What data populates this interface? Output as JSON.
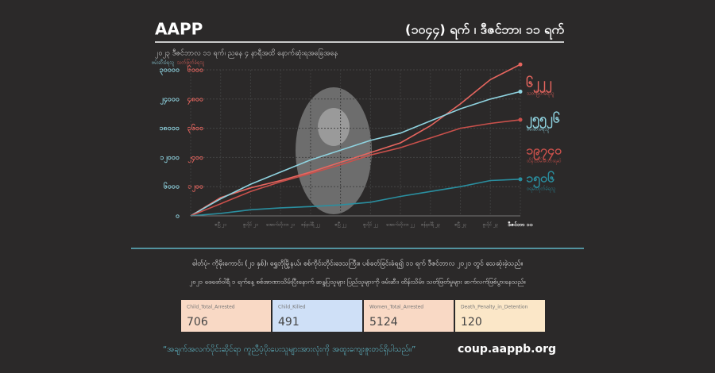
{
  "header": {
    "title": "AAPP",
    "date": "(၁၀၄၄) ရက် ၊ ဒီဇင်ဘာ၊ ၁၁ ရက်",
    "subtitle": "၂၀၂၃ ဒီဇင်ဘာလ ၁၁ ရက်၊ ညနေ ၄ နာရီအထိ နောက်ဆုံးရအခြေအနေ"
  },
  "chart_data": {
    "type": "line",
    "y_label": "ဖမ်းဆီးခံရသူ",
    "y2_label": "သတ်ဖြတ်ခံရသူ",
    "categories": [
      null,
      "ဧပြီ ၂၁",
      "ဇူလိုင် ၂၁",
      "အောက်တိုဘာ ၂၁",
      "ဇန်နဝါရီ ၂၂",
      "ဧပြီ ၂၂",
      "ဇူလိုင် ၂၂",
      "အောက်တိုဘာ ၂၂",
      "ဇန်နဝါရီ ၂၃",
      "ဧပြီ ၂၃",
      "ဇူလိုင် ၂၃",
      "ဒီဇင်ဘာ ၁၁"
    ],
    "ylim": [
      0,
      30000
    ],
    "yticks": [
      {
        "value": 0,
        "label": "၀"
      },
      {
        "value": 6000,
        "label": "၆၀၀၀"
      },
      {
        "value": 12000,
        "label": "၁၂၀၀၀"
      },
      {
        "value": 18000,
        "label": "၁၈၀၀၀"
      },
      {
        "value": 24000,
        "label": "၂၄၀၀၀"
      },
      {
        "value": 30000,
        "label": "၃၀၀၀၀"
      }
    ],
    "y2lim": [
      0,
      6000
    ],
    "y2ticks": [
      {
        "value": 1200,
        "label": "၁၂၀၀"
      },
      {
        "value": 2400,
        "label": "၂၄၀၀"
      },
      {
        "value": 3600,
        "label": "၃၆၀၀"
      },
      {
        "value": 4800,
        "label": "၄၈၀၀"
      },
      {
        "value": 6000,
        "label": "၆၀၀၀"
      }
    ],
    "grid": true,
    "series": [
      {
        "name": "သတ်ဖြတ်ခံရသူ",
        "color": "#e8665f",
        "axis": "y2",
        "values": [
          0,
          750,
          1150,
          1450,
          1800,
          2200,
          2600,
          3000,
          3700,
          4600,
          5600,
          6222
        ],
        "value_labels": [
          null,
          null,
          null,
          null,
          null,
          null,
          null,
          null,
          null,
          null,
          null,
          "၆၂၂၂"
        ]
      },
      {
        "name": "ဖမ်းဆီးခံရသူ",
        "color": "#8fd3e0",
        "values": [
          0,
          3500,
          6500,
          9000,
          11500,
          13500,
          15500,
          17000,
          19500,
          22000,
          24000,
          25526
        ],
        "value_labels": [
          null,
          null,
          null,
          null,
          null,
          null,
          null,
          null,
          null,
          null,
          null,
          "၂၅၅၂၆"
        ]
      },
      {
        "name": "ထိန်းသိမ်းခံထားရဆဲ",
        "color": "#c9504b",
        "values": [
          0,
          2500,
          5000,
          7000,
          8700,
          10500,
          12500,
          14000,
          16000,
          18000,
          19000,
          19740
        ],
        "value_labels": [
          null,
          null,
          null,
          null,
          null,
          null,
          null,
          null,
          null,
          null,
          null,
          "၁၉၇၄၀"
        ]
      },
      {
        "name": "ဝရမ်းထုတ်ခံရသူ",
        "color": "#2a8fa0",
        "axis": "y2",
        "values": [
          0,
          100,
          250,
          330,
          380,
          450,
          560,
          800,
          1000,
          1200,
          1450,
          1506
        ],
        "value_labels": [
          null,
          null,
          null,
          null,
          null,
          null,
          null,
          null,
          null,
          null,
          null,
          "၁၅၀၆"
        ]
      }
    ]
  },
  "notes": [
    "ဓါတ်ပုံ- ကိုမိုးကောင်း (၂၁ နှစ်)၊ ရွှေဘိုမြို့နယ်၊ စစ်ကိုင်းတိုင်းဒေသကြီး။ ပစ်ခတ်ခြင်းခံရ၍ ၁၁ ရက် ဒီဇင်ဘာလ ၂၀၂၁ တွင် သေဆုံးခဲ့သည်။",
    "၂၀၂၁ ဖေဖော်ဝါရီ ၁ ရက်နေ့ စစ်အာဏာသိမ်းပြီးနောက် ဆန္ဒပြသူများ ပြည်သူများကို ဖမ်းဆီး၊ ထိန်းသိမ်း၊ သတ်ဖြတ်မှုများ ဆက်လက်ဖြစ်ပွားနေသည်။"
  ],
  "cards": [
    {
      "label": "Child_Total_Arrested",
      "value": "706"
    },
    {
      "label": "Child_Killed",
      "value": "491"
    },
    {
      "label": "Women_Total_Arrested",
      "value": "5124"
    },
    {
      "label": "Death_Penalty_in_Detention",
      "value": "120"
    }
  ],
  "footer": {
    "quote": "“အချက်အလက်ပိုင်းဆိုင်ရာ ကူညီပံ့ပိုးပေးသူများအားလုံးကို အထူးကျေးဇူးတင်ရှိပါသည်။”",
    "site": "coup.aappb.org"
  }
}
